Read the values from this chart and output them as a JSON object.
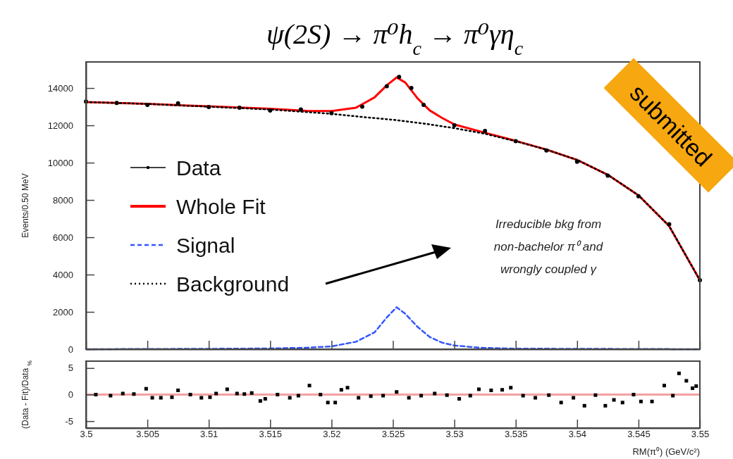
{
  "chart_data": [
    {
      "type": "line",
      "title": "ψ(2S) → π⁰h$_{c}$ → π⁰γη$_{c}$",
      "ylabel": "Events/0.50 MeV",
      "xlim": [
        3.5,
        3.55
      ],
      "xticks": [
        3.5,
        3.505,
        3.51,
        3.515,
        3.52,
        3.525,
        3.53,
        3.535,
        3.54,
        3.545,
        3.55
      ],
      "ylim": [
        0,
        15400
      ],
      "yticks": [
        0,
        2000,
        4000,
        6000,
        8000,
        10000,
        12000,
        14000
      ],
      "tick_labels": "y",
      "legend": "left",
      "annotations": [
        "Irreducible bkg from\nnon-bachelor π⁰ and\nwrongly coupled γ",
        "submitted"
      ],
      "series": [
        {
          "name": "Data",
          "type": "scatter",
          "color": "#000000",
          "marker": "circle",
          "x": [
            3.5,
            3.5025,
            3.505,
            3.5075,
            3.51,
            3.5125,
            3.515,
            3.5175,
            3.52,
            3.5225,
            3.5245,
            3.5255,
            3.5265,
            3.5275,
            3.53,
            3.5325,
            3.535,
            3.5375,
            3.54,
            3.5425,
            3.545,
            3.5475,
            3.55
          ],
          "values": [
            13280,
            13200,
            13100,
            13180,
            12980,
            12950,
            12800,
            12850,
            12650,
            13000,
            14100,
            14600,
            14000,
            13100,
            12000,
            11700,
            11150,
            10650,
            10050,
            9300,
            8200,
            6700,
            3700
          ]
        },
        {
          "name": "Whole Fit",
          "color": "#ff0000",
          "line_style": "solid",
          "x": [
            3.5,
            3.505,
            3.51,
            3.515,
            3.518,
            3.52,
            3.522,
            3.5235,
            3.5245,
            3.5253,
            3.526,
            3.527,
            3.528,
            3.529,
            3.53,
            3.5325,
            3.535,
            3.5375,
            3.54,
            3.5425,
            3.545,
            3.5475,
            3.55
          ],
          "values": [
            13250,
            13150,
            13020,
            12890,
            12780,
            12770,
            12950,
            13500,
            14150,
            14570,
            14300,
            13450,
            12800,
            12400,
            12050,
            11600,
            11170,
            10700,
            10150,
            9350,
            8250,
            6600,
            3700
          ]
        },
        {
          "name": "Signal",
          "color": "#3355ff",
          "line_style": "dashed",
          "x": [
            3.5,
            3.51,
            3.515,
            3.518,
            3.52,
            3.522,
            3.5235,
            3.5245,
            3.5253,
            3.526,
            3.527,
            3.528,
            3.529,
            3.53,
            3.532,
            3.535,
            3.55
          ],
          "values": [
            0,
            20,
            40,
            80,
            150,
            400,
            900,
            1700,
            2250,
            1900,
            1200,
            650,
            350,
            200,
            80,
            30,
            0
          ]
        },
        {
          "name": "Background",
          "color": "#000000",
          "line_style": "dotted",
          "x": [
            3.5,
            3.505,
            3.51,
            3.515,
            3.52,
            3.5225,
            3.525,
            3.5275,
            3.53,
            3.5325,
            3.535,
            3.5375,
            3.54,
            3.5425,
            3.545,
            3.5475,
            3.55
          ],
          "values": [
            13250,
            13150,
            13000,
            12850,
            12620,
            12450,
            12300,
            12100,
            11850,
            11550,
            11150,
            10700,
            10150,
            9350,
            8250,
            6600,
            3700
          ]
        }
      ]
    },
    {
      "type": "scatter",
      "xlabel": "RM(π⁰) (GeV/c²)",
      "ylabel": "(Data - Fit)/Data $_{%}$",
      "xlim": [
        3.5,
        3.55
      ],
      "xticks": [
        3.5,
        3.505,
        3.51,
        3.515,
        3.52,
        3.525,
        3.53,
        3.535,
        3.54,
        3.545,
        3.55
      ],
      "ylim": [
        -6.3,
        6.3
      ],
      "yticks": [
        -5,
        0,
        5
      ],
      "ref_lines": [
        {
          "axis": "y",
          "value": 0,
          "color": "#f4a0a0"
        }
      ],
      "series": [
        {
          "color": "#000000",
          "marker": "square",
          "x": [
            3.5008,
            3.502,
            3.503,
            3.5039,
            3.5049,
            3.5054,
            3.5061,
            3.507,
            3.5075,
            3.5085,
            3.5094,
            3.5101,
            3.5106,
            3.5115,
            3.5123,
            3.5129,
            3.5135,
            3.5142,
            3.5146,
            3.5156,
            3.5166,
            3.5173,
            3.5182,
            3.5191,
            3.5197,
            3.5203,
            3.5208,
            3.5213,
            3.5222,
            3.5232,
            3.5242,
            3.5253,
            3.5263,
            3.5273,
            3.5284,
            3.5294,
            3.5304,
            3.5313,
            3.532,
            3.533,
            3.5339,
            3.5346,
            3.5356,
            3.5366,
            3.5377,
            3.5387,
            3.5397,
            3.5406,
            3.5415,
            3.5423,
            3.543,
            3.5437,
            3.5446,
            3.5452,
            3.5461,
            3.5471,
            3.5478,
            3.5483,
            3.5489,
            3.5494,
            3.5497
          ],
          "values": [
            0,
            -0.2,
            0.2,
            0.1,
            1.1,
            -0.6,
            -0.6,
            -0.5,
            0.8,
            0,
            -0.6,
            -0.5,
            0.2,
            1,
            0.2,
            0.1,
            0.3,
            -1.2,
            -0.8,
            0,
            -0.6,
            -0.2,
            1.7,
            0,
            -1.5,
            -1.5,
            0.9,
            1.3,
            -0.6,
            -0.3,
            -0.2,
            0.5,
            -0.6,
            -0.2,
            0.2,
            -0.1,
            -0.8,
            -0.2,
            1,
            0.8,
            0.9,
            1.3,
            -0.2,
            -0.6,
            -0.1,
            -1.5,
            -0.6,
            -2.1,
            -0.1,
            -2.1,
            -1,
            -1.5,
            0,
            -1.3,
            -1.3,
            1.7,
            -0.2,
            4,
            2.6,
            1.2,
            1.6
          ]
        }
      ]
    }
  ]
}
